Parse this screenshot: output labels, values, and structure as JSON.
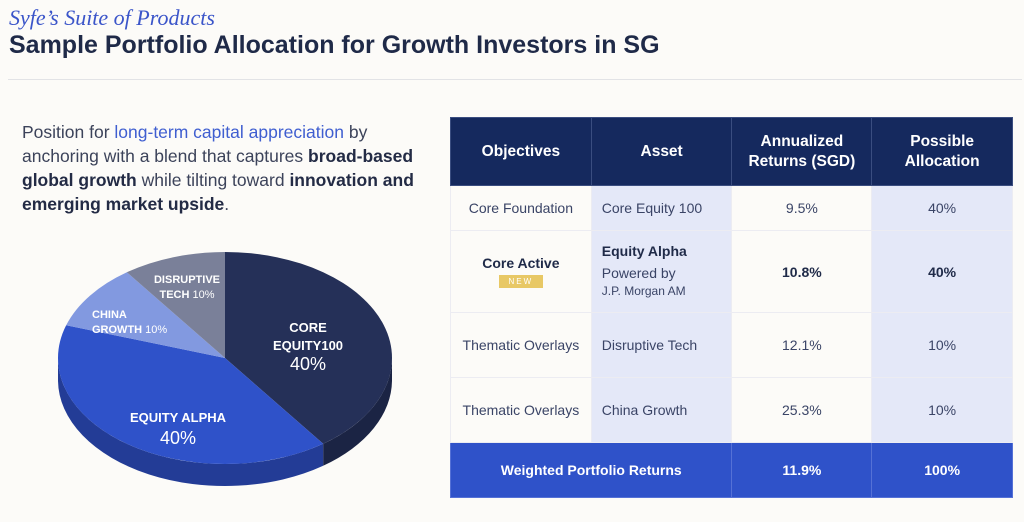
{
  "header": {
    "kicker": "Syfe’s Suite of Products",
    "title": "Sample Portfolio Allocation for Growth Investors in SG"
  },
  "intro": {
    "p1": "Position for ",
    "hl": "long-term capital appreciation",
    "p2": " by anchoring with a blend that captures ",
    "b1": "broad-based global growth",
    "p3": " while tilting toward ",
    "b2": "innovation and emerging market upside",
    "p4": "."
  },
  "chart_data": {
    "type": "pie",
    "slices": [
      {
        "label": "CORE EQUITY100",
        "value": 40,
        "value_label": "40%",
        "color": "#253058",
        "side": "#1b2444"
      },
      {
        "label": "EQUITY ALPHA",
        "value": 40,
        "value_label": "40%",
        "color": "#2f52c9",
        "side": "#233c96"
      },
      {
        "label": "CHINA GROWTH",
        "value": 10,
        "value_label": "10%",
        "color": "#8299e0",
        "side": "#6176b5"
      },
      {
        "label": "DISRUPTIVE TECH",
        "value": 10,
        "value_label": "10%",
        "color": "#7a8099",
        "side": "#5c6278"
      }
    ]
  },
  "table": {
    "headers": [
      "Objectives",
      "Asset",
      "Annualized Returns (SGD)",
      "Possible Allocation"
    ],
    "rows": [
      {
        "objective": "Core Foundation",
        "asset": "Core Equity 100",
        "returns": "9.5%",
        "allocation": "40%"
      },
      {
        "objective": "Core Active",
        "badge": "NEW",
        "asset": "Equity Alpha",
        "asset_sub1": "Powered by",
        "asset_sub2": "J.P. Morgan AM",
        "returns": "10.8%",
        "allocation": "40%"
      },
      {
        "objective": "Thematic Overlays",
        "asset": "Disruptive Tech",
        "returns": "12.1%",
        "allocation": "10%"
      },
      {
        "objective": "Thematic Overlays",
        "asset": "China Growth",
        "returns": "25.3%",
        "allocation": "10%"
      }
    ],
    "footer": {
      "label": "Weighted Portfolio Returns",
      "returns": "11.9%",
      "allocation": "100%"
    }
  }
}
